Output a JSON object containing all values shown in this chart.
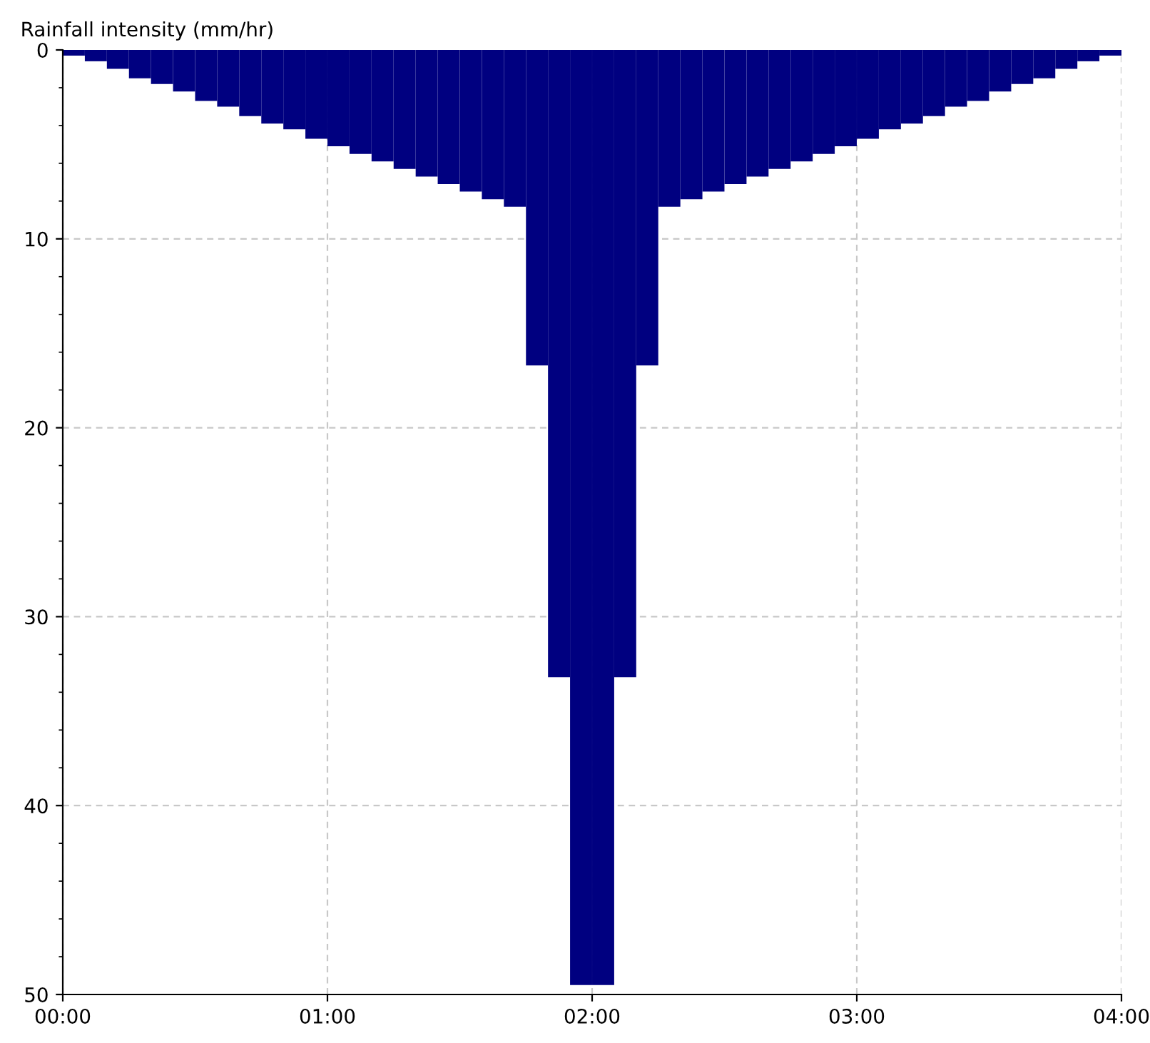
{
  "chart_data": {
    "type": "bar",
    "ylabel": "Rainfall intensity (mm/hr)",
    "x": [
      0.0417,
      0.125,
      0.2083,
      0.2917,
      0.375,
      0.4583,
      0.5417,
      0.625,
      0.7083,
      0.7917,
      0.875,
      0.9583,
      1.0417,
      1.125,
      1.2083,
      1.2917,
      1.375,
      1.4583,
      1.5417,
      1.625,
      1.7083,
      1.7917,
      1.875,
      1.9583,
      2.0417,
      2.125,
      2.2083,
      2.2917,
      2.375,
      2.4583,
      2.5417,
      2.625,
      2.7083,
      2.7917,
      2.875,
      2.9583,
      3.0417,
      3.125,
      3.2083,
      3.2917,
      3.375,
      3.4583,
      3.5417,
      3.625,
      3.7083,
      3.7917,
      3.875,
      3.9583
    ],
    "series": [
      {
        "color": "#000080",
        "values": [
          0.3,
          0.6,
          1.0,
          1.5,
          1.8,
          2.2,
          2.7,
          3.0,
          3.5,
          3.9,
          4.2,
          4.7,
          5.1,
          5.5,
          5.9,
          6.3,
          6.7,
          7.1,
          7.5,
          7.9,
          8.3,
          16.7,
          33.2,
          49.5,
          49.5,
          33.2,
          16.7,
          8.3,
          7.9,
          7.5,
          7.1,
          6.7,
          6.3,
          5.9,
          5.5,
          5.1,
          4.7,
          4.2,
          3.9,
          3.5,
          3.0,
          2.7,
          2.2,
          1.8,
          1.5,
          1.0,
          0.6,
          0.3
        ]
      }
    ],
    "xlim": [
      0,
      4
    ],
    "xticks": [
      {
        "value": 0,
        "label": "00:00"
      },
      {
        "value": 1,
        "label": "01:00"
      },
      {
        "value": 2,
        "label": "02:00"
      },
      {
        "value": 3,
        "label": "03:00"
      },
      {
        "value": 4,
        "label": "04:00"
      }
    ],
    "ylim": [
      50,
      0
    ],
    "yticks": [
      0,
      10,
      20,
      30,
      40,
      50
    ],
    "grid": true,
    "legend": false
  }
}
